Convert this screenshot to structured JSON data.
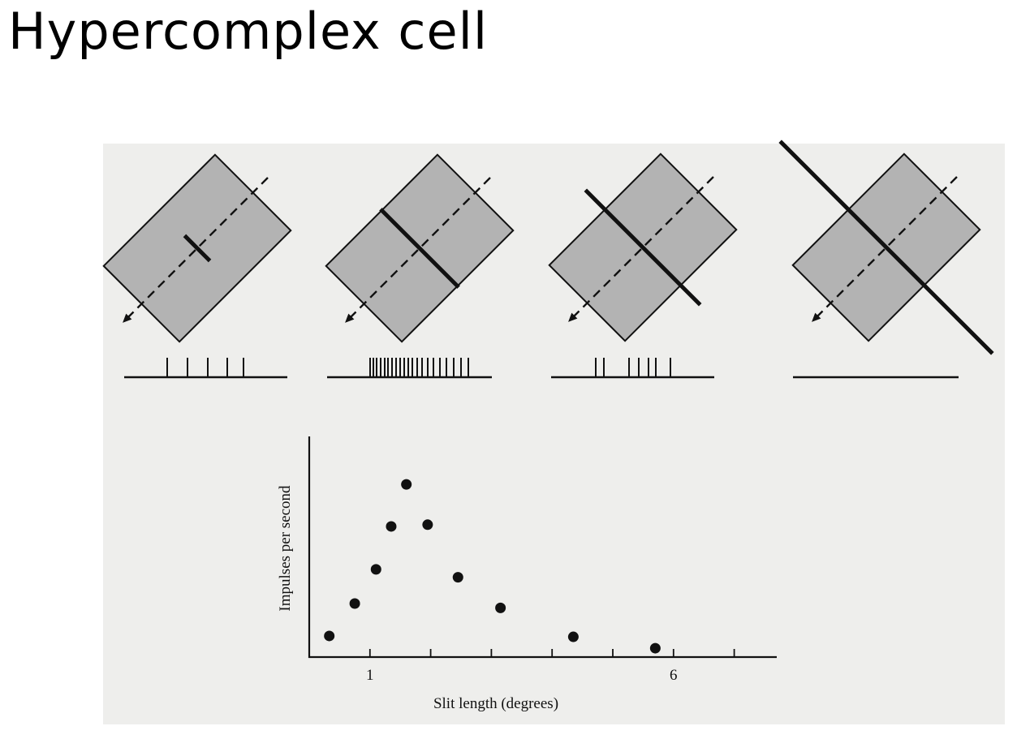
{
  "title": "Hypercomplex cell",
  "colors": {
    "background": "#ffffff",
    "figure_background": "#eeeeec",
    "field": "#b3b3b3",
    "ink": "#111111"
  },
  "stimulus_panels": [
    {
      "slit": "short",
      "spike_count": 5
    },
    {
      "slit": "optimal",
      "spike_count": 21
    },
    {
      "slit": "long",
      "spike_count": 7
    },
    {
      "slit": "longest",
      "spike_count": 0
    }
  ],
  "chart_data": {
    "type": "scatter",
    "xlabel": "Slit length (degrees)",
    "ylabel": "Impulses per second",
    "x_ticks": [
      0,
      1,
      2,
      3,
      4,
      5,
      6,
      7
    ],
    "x_tick_labels": [
      "",
      "1",
      "",
      "",
      "",
      "",
      "6",
      ""
    ],
    "xlim": [
      0,
      7
    ],
    "ylim": [
      0,
      10
    ],
    "grid": false,
    "points": [
      {
        "x": 0.33,
        "y": 0.65
      },
      {
        "x": 0.75,
        "y": 2.5
      },
      {
        "x": 1.1,
        "y": 4.45
      },
      {
        "x": 1.35,
        "y": 6.9
      },
      {
        "x": 1.6,
        "y": 9.3
      },
      {
        "x": 1.95,
        "y": 7.0
      },
      {
        "x": 2.45,
        "y": 4.0
      },
      {
        "x": 3.15,
        "y": 2.25
      },
      {
        "x": 4.35,
        "y": 0.6
      },
      {
        "x": 5.7,
        "y": -0.05
      }
    ]
  }
}
